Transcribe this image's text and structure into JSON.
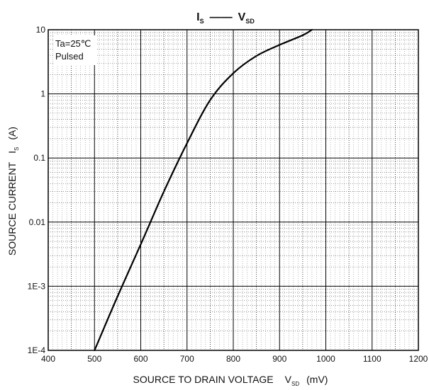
{
  "chart_data": {
    "type": "line",
    "title": {
      "left_main": "I",
      "left_sub": "S",
      "dash": "——",
      "right_main": "V",
      "right_sub": "SD"
    },
    "xlabel": {
      "text": "SOURCE TO DRAIN VOLTAGE",
      "symbol": "V",
      "symbol_sub": "SD",
      "unit": "(mV)"
    },
    "ylabel": {
      "text": "SOURCE CURRENT",
      "symbol": "I",
      "symbol_sub": "S",
      "unit": "(A)"
    },
    "xlim": [
      400,
      1200
    ],
    "ylim": [
      0.0001,
      10
    ],
    "yscale": "log",
    "grid": true,
    "x_ticks": [
      {
        "value": 400,
        "label": "400"
      },
      {
        "value": 500,
        "label": "500"
      },
      {
        "value": 600,
        "label": "600"
      },
      {
        "value": 700,
        "label": "700"
      },
      {
        "value": 800,
        "label": "800"
      },
      {
        "value": 900,
        "label": "900"
      },
      {
        "value": 1000,
        "label": "1000"
      },
      {
        "value": 1100,
        "label": "1100"
      },
      {
        "value": 1200,
        "label": "1200"
      }
    ],
    "y_ticks": [
      {
        "value": 0.0001,
        "label": "1E-4"
      },
      {
        "value": 0.001,
        "label": "1E-3"
      },
      {
        "value": 0.01,
        "label": "0.01"
      },
      {
        "value": 0.1,
        "label": "0.1"
      },
      {
        "value": 1,
        "label": "1"
      },
      {
        "value": 10,
        "label": "10"
      }
    ],
    "annotations": [
      "Ta=25℃",
      "Pulsed"
    ],
    "series": [
      {
        "x": [
          500,
          550,
          600,
          650,
          700,
          750,
          800,
          850,
          900,
          950,
          970
        ],
        "y": [
          0.0001,
          0.0007,
          0.0045,
          0.03,
          0.17,
          0.8,
          2.1,
          3.9,
          5.8,
          8.2,
          10
        ]
      }
    ],
    "color": "#000000"
  }
}
